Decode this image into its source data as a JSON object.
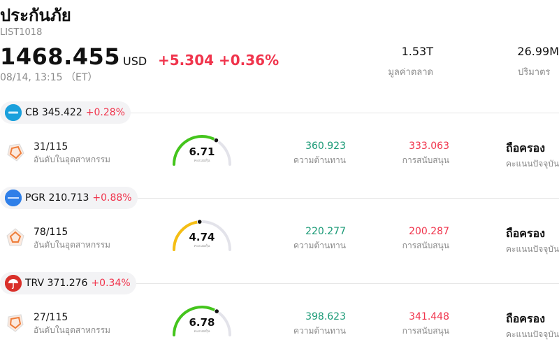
{
  "header": {
    "title": "ประกันภัย",
    "code": "LIST1018",
    "price": "1468.455",
    "currency": "USD",
    "change": "+5.304 +0.36%",
    "timestamp": "08/14, 13:15 （ET）",
    "market_cap_value": "1.53T",
    "market_cap_label": "มูลค่าตลาด",
    "volume_value": "26.99M",
    "volume_label": "ปริมาตร"
  },
  "colors": {
    "up": "#f0344c",
    "resistance": "#1a9a76"
  },
  "stocks": [
    {
      "ticker": "CB",
      "price": "345.422",
      "pct": "+0.28%",
      "logo_icon": "cb-logo-icon",
      "rank": "31/115",
      "rank_label": "อันดับในอุตสาหกรรม",
      "score": "6.71",
      "score_label": "คะแนนหุ้น",
      "score_fraction": 0.671,
      "resistance": "360.923",
      "resistance_label": "ความต้านทาน",
      "support": "333.063",
      "support_label": "การสนับสนุน",
      "rating": "ถือครอง",
      "rating_label": "คะแนนปัจจุบัน"
    },
    {
      "ticker": "PGR",
      "price": "210.713",
      "pct": "+0.88%",
      "logo_icon": "pgr-logo-icon",
      "rank": "78/115",
      "rank_label": "อันดับในอุตสาหกรรม",
      "score": "4.74",
      "score_label": "คะแนนหุ้น",
      "score_fraction": 0.474,
      "resistance": "220.277",
      "resistance_label": "ความต้านทาน",
      "support": "200.287",
      "support_label": "การสนับสนุน",
      "rating": "ถือครอง",
      "rating_label": "คะแนนปัจจุบัน"
    },
    {
      "ticker": "TRV",
      "price": "371.276",
      "pct": "+0.34%",
      "logo_icon": "trv-umbrella-logo-icon",
      "rank": "27/115",
      "rank_label": "อันดับในอุตสาหกรรม",
      "score": "6.78",
      "score_label": "คะแนนหุ้น",
      "score_fraction": 0.678,
      "resistance": "398.623",
      "resistance_label": "ความต้านทาน",
      "support": "341.448",
      "support_label": "การสนับสนุน",
      "rating": "ถือครอง",
      "rating_label": "คะแนนปัจจุบัน"
    }
  ]
}
